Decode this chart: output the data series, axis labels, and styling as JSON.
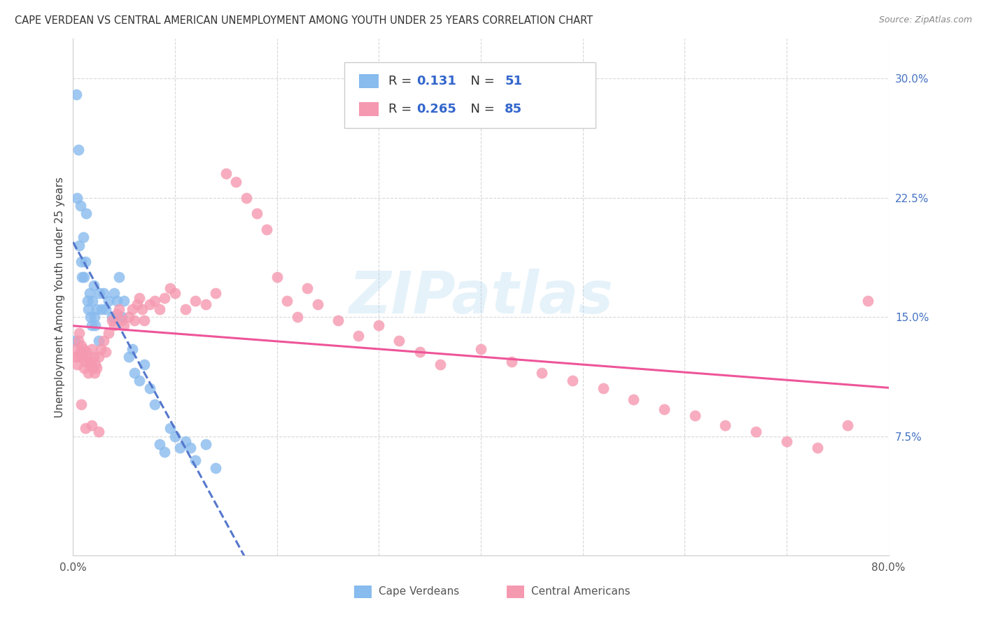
{
  "title": "CAPE VERDEAN VS CENTRAL AMERICAN UNEMPLOYMENT AMONG YOUTH UNDER 25 YEARS CORRELATION CHART",
  "source": "Source: ZipAtlas.com",
  "ylabel": "Unemployment Among Youth under 25 years",
  "xlim": [
    0.0,
    0.8
  ],
  "ylim": [
    0.0,
    0.325
  ],
  "xticks": [
    0.0,
    0.1,
    0.2,
    0.3,
    0.4,
    0.5,
    0.6,
    0.7,
    0.8
  ],
  "yticks_right": [
    0.075,
    0.15,
    0.225,
    0.3
  ],
  "ytick_right_labels": [
    "7.5%",
    "15.0%",
    "22.5%",
    "30.0%"
  ],
  "blue_color": "#88bbee",
  "pink_color": "#f599b0",
  "blue_line_color": "#5577cc",
  "pink_line_color": "#ee5599",
  "legend_R_blue": "0.131",
  "legend_N_blue": "51",
  "legend_R_pink": "0.265",
  "legend_N_pink": "85",
  "watermark": "ZIPatlas",
  "cape_verdean_x": [
    0.002,
    0.003,
    0.004,
    0.005,
    0.006,
    0.007,
    0.008,
    0.009,
    0.01,
    0.011,
    0.012,
    0.013,
    0.014,
    0.015,
    0.016,
    0.017,
    0.018,
    0.019,
    0.02,
    0.021,
    0.022,
    0.023,
    0.025,
    0.026,
    0.028,
    0.03,
    0.032,
    0.035,
    0.038,
    0.04,
    0.043,
    0.045,
    0.048,
    0.05,
    0.055,
    0.058,
    0.06,
    0.065,
    0.07,
    0.075,
    0.08,
    0.085,
    0.09,
    0.095,
    0.1,
    0.105,
    0.11,
    0.115,
    0.12,
    0.13,
    0.14
  ],
  "cape_verdean_y": [
    0.135,
    0.29,
    0.225,
    0.255,
    0.195,
    0.22,
    0.185,
    0.175,
    0.2,
    0.175,
    0.185,
    0.215,
    0.16,
    0.155,
    0.165,
    0.15,
    0.145,
    0.16,
    0.17,
    0.15,
    0.145,
    0.155,
    0.135,
    0.165,
    0.155,
    0.165,
    0.155,
    0.16,
    0.15,
    0.165,
    0.16,
    0.175,
    0.15,
    0.16,
    0.125,
    0.13,
    0.115,
    0.11,
    0.12,
    0.105,
    0.095,
    0.07,
    0.065,
    0.08,
    0.075,
    0.068,
    0.072,
    0.068,
    0.06,
    0.07,
    0.055
  ],
  "central_american_x": [
    0.002,
    0.003,
    0.004,
    0.005,
    0.006,
    0.007,
    0.008,
    0.009,
    0.01,
    0.011,
    0.012,
    0.013,
    0.014,
    0.015,
    0.016,
    0.017,
    0.018,
    0.019,
    0.02,
    0.021,
    0.022,
    0.023,
    0.025,
    0.027,
    0.03,
    0.032,
    0.035,
    0.038,
    0.04,
    0.043,
    0.045,
    0.048,
    0.05,
    0.055,
    0.058,
    0.06,
    0.063,
    0.065,
    0.068,
    0.07,
    0.075,
    0.08,
    0.085,
    0.09,
    0.095,
    0.1,
    0.11,
    0.12,
    0.13,
    0.14,
    0.15,
    0.16,
    0.17,
    0.18,
    0.19,
    0.2,
    0.21,
    0.22,
    0.23,
    0.24,
    0.26,
    0.28,
    0.3,
    0.32,
    0.34,
    0.36,
    0.4,
    0.43,
    0.46,
    0.49,
    0.52,
    0.55,
    0.58,
    0.61,
    0.64,
    0.67,
    0.7,
    0.73,
    0.76,
    0.78,
    0.005,
    0.008,
    0.012,
    0.018,
    0.025
  ],
  "central_american_y": [
    0.13,
    0.125,
    0.12,
    0.135,
    0.14,
    0.128,
    0.132,
    0.125,
    0.13,
    0.118,
    0.122,
    0.128,
    0.125,
    0.115,
    0.12,
    0.122,
    0.13,
    0.118,
    0.125,
    0.115,
    0.12,
    0.118,
    0.125,
    0.13,
    0.135,
    0.128,
    0.14,
    0.148,
    0.145,
    0.152,
    0.155,
    0.148,
    0.145,
    0.15,
    0.155,
    0.148,
    0.158,
    0.162,
    0.155,
    0.148,
    0.158,
    0.16,
    0.155,
    0.162,
    0.168,
    0.165,
    0.155,
    0.16,
    0.158,
    0.165,
    0.24,
    0.235,
    0.225,
    0.215,
    0.205,
    0.175,
    0.16,
    0.15,
    0.168,
    0.158,
    0.148,
    0.138,
    0.145,
    0.135,
    0.128,
    0.12,
    0.13,
    0.122,
    0.115,
    0.11,
    0.105,
    0.098,
    0.092,
    0.088,
    0.082,
    0.078,
    0.072,
    0.068,
    0.082,
    0.16,
    0.125,
    0.095,
    0.08,
    0.082,
    0.078
  ]
}
